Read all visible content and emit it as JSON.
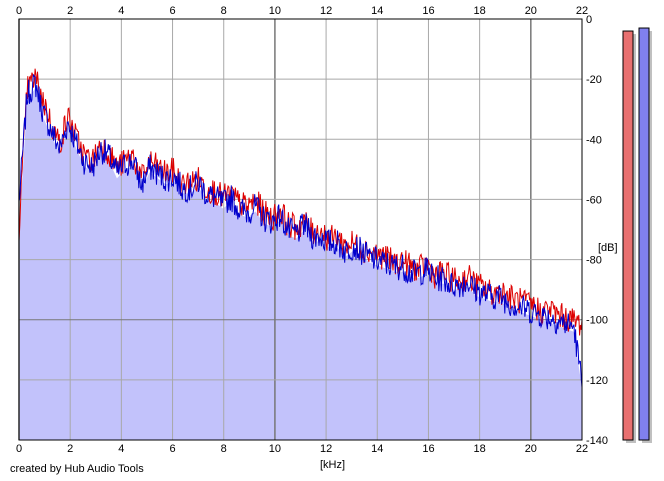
{
  "chart_data": {
    "type": "area",
    "x_unit": "[kHz]",
    "y_unit": "[dB]",
    "xlim": [
      0,
      22
    ],
    "ylim": [
      -140,
      0
    ],
    "x_ticks": [
      0,
      2,
      4,
      6,
      8,
      10,
      12,
      14,
      16,
      18,
      20,
      22
    ],
    "y_ticks": [
      0,
      -20,
      -40,
      -60,
      -80,
      -100,
      -120,
      -140
    ],
    "grid": true,
    "series": [
      {
        "color": "#dd0000",
        "values_db": [
          -68,
          -22,
          -18,
          -26,
          -34,
          -40,
          -31,
          -38,
          -44,
          -46,
          -40,
          -43,
          -48,
          -46,
          -44,
          -52,
          -46,
          -48,
          -50,
          -49,
          -54,
          -53,
          -52,
          -55,
          -56,
          -58,
          -57,
          -60,
          -61,
          -59,
          -63,
          -65,
          -62,
          -67,
          -68,
          -66,
          -70,
          -69,
          -72,
          -71,
          -74,
          -73,
          -75,
          -76,
          -77,
          -78,
          -80,
          -79,
          -81,
          -82,
          -80,
          -84,
          -83,
          -85,
          -86,
          -84,
          -87,
          -88,
          -90,
          -89,
          -91,
          -92,
          -93,
          -94,
          -96,
          -95,
          -97,
          -98,
          -99,
          -100
        ]
      },
      {
        "color": "#0000cc",
        "values_db": [
          -60,
          -24,
          -20,
          -30,
          -36,
          -42,
          -33,
          -40,
          -46,
          -48,
          -42,
          -44,
          -50,
          -47,
          -46,
          -54,
          -48,
          -50,
          -52,
          -51,
          -55,
          -55,
          -53,
          -57,
          -58,
          -60,
          -58,
          -62,
          -63,
          -61,
          -65,
          -66,
          -64,
          -69,
          -70,
          -67,
          -71,
          -71,
          -73,
          -73,
          -76,
          -74,
          -76,
          -78,
          -79,
          -80,
          -81,
          -81,
          -83,
          -83,
          -82,
          -85,
          -85,
          -87,
          -87,
          -86,
          -89,
          -90,
          -91,
          -91,
          -93,
          -94,
          -95,
          -96,
          -97,
          -98,
          -99,
          -100,
          -101,
          -120
        ]
      }
    ],
    "level_meters": [
      {
        "channel": "left",
        "color": "#e87070",
        "peak_db": -4
      },
      {
        "channel": "right",
        "color": "#8080ee",
        "peak_db": -3
      }
    ]
  },
  "footer": {
    "credit": "created by Hub Audio Tools"
  }
}
